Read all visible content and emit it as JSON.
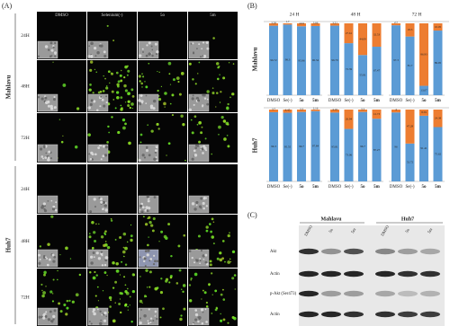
{
  "panel_a": {
    "label": "(A)",
    "columns": [
      "DMSO",
      "Selenium(-)",
      "5o",
      "5m"
    ],
    "cell_lines": [
      {
        "name": "Mahlavu",
        "times": [
          "24H",
          "48H",
          "72H"
        ]
      },
      {
        "name": "Huh7",
        "times": [
          "24H",
          "48H",
          "72H"
        ]
      }
    ]
  },
  "panel_b": {
    "label": "(B)",
    "timepoints": [
      "24 H",
      "48 H",
      "72 H"
    ],
    "categories": [
      "DMSO",
      "Se(-)",
      "5o",
      "5m"
    ],
    "series_colors": [
      "#5b9bd5",
      "#ed7d31"
    ],
    "charts": [
      {
        "name": "Mahlavu",
        "lower": [
          [
            96.72,
            98.3,
            95.96,
            96.34
          ],
          [
            96.79,
            72.39,
            55.91,
            67.47
          ],
          [
            97.3,
            81.7,
            13.07,
            89.95
          ]
        ],
        "upper": [
          [
            3.28,
            1.7,
            4.04,
            3.66
          ],
          [
            3.21,
            27.61,
            44.09,
            32.53
          ],
          [
            2.7,
            18.3,
            86.93,
            10.05
          ]
        ]
      },
      {
        "name": "Huh7",
        "lower": [
          [
            96.3,
            95.55,
            96.7,
            97.84
          ],
          [
            95.81,
            73.06,
            96.7,
            87.27
          ],
          [
            96,
            52.72,
            91.41,
            75.62
          ]
        ],
        "upper": [
          [
            3.7,
            4.45,
            3.3,
            2.16
          ],
          [
            4.19,
            26.94,
            3.3,
            12.73
          ],
          [
            4,
            47.28,
            8.59,
            24.38
          ]
        ]
      }
    ]
  },
  "panel_c": {
    "label": "(C)",
    "groups": [
      "Mahlavu",
      "Huh7"
    ],
    "lanes": [
      "DMSO",
      "5o",
      "5m",
      "DMSO",
      "5o",
      "5m"
    ],
    "rows": [
      "Akt",
      "Actin",
      "p-Akt (Ser473)",
      "Actin"
    ]
  }
}
